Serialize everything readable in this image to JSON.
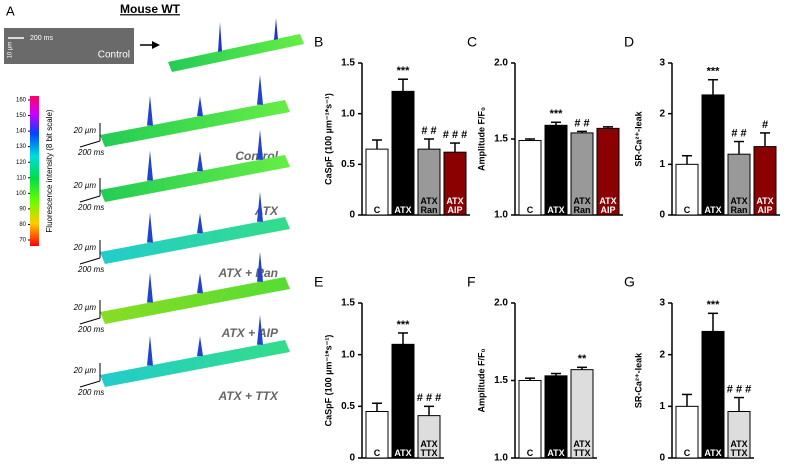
{
  "panel_a": {
    "panel": "A",
    "title": "Mouse WT",
    "control_image": {
      "label": "Control",
      "scale_time": "200 ms",
      "scale_space": "10 µm"
    },
    "colorbar": {
      "label": "Fluorescence intensity (8 bit scale)",
      "ticks": [
        70,
        80,
        90,
        100,
        110,
        120,
        130,
        140,
        150,
        160
      ]
    },
    "surfaces": [
      {
        "label": "Control",
        "scale_space": "20 µm",
        "scale_time": "200 ms"
      },
      {
        "label": "ATX",
        "scale_space": "20 µm",
        "scale_time": "200 ms"
      },
      {
        "label": "ATX + Ran",
        "scale_space": "20 µm",
        "scale_time": "200 ms"
      },
      {
        "label": "ATX + AIP",
        "scale_space": "20 µm",
        "scale_time": "200 ms"
      },
      {
        "label": "ATX + TTX",
        "scale_space": "20 µm",
        "scale_time": "200 ms"
      }
    ]
  },
  "chart_data": [
    {
      "type": "bar",
      "panel": "B",
      "ylabel": "CaSpF (100 µm⁻¹*s⁻¹)",
      "categories": [
        "C",
        "ATX",
        "ATX Ran",
        "ATX AIP"
      ],
      "values": [
        0.65,
        1.22,
        0.65,
        0.62
      ],
      "errors": [
        0.09,
        0.12,
        0.1,
        0.09
      ],
      "colors": [
        "#ffffff",
        "#000000",
        "#999999",
        "#8b0000"
      ],
      "annotations": [
        null,
        "***",
        "# #",
        "# # #"
      ],
      "ylim": [
        0,
        1.5
      ],
      "yticks": [
        0,
        0.5,
        {
          "value": 1,
          "label": "1.0"
        },
        1.5
      ]
    },
    {
      "type": "bar",
      "panel": "C",
      "ylabel": "Amplitude F/F₀",
      "categories": [
        "C",
        "ATX",
        "ATX Ran",
        "ATX AIP"
      ],
      "values": [
        1.49,
        1.59,
        1.54,
        1.57
      ],
      "errors": [
        0.01,
        0.02,
        0.01,
        0.01
      ],
      "colors": [
        "#ffffff",
        "#000000",
        "#999999",
        "#8b0000"
      ],
      "annotations": [
        null,
        "***",
        "# #",
        null
      ],
      "ylim": [
        1,
        2
      ],
      "yticks": [
        {
          "value": 1,
          "label": "1.0"
        },
        1.5,
        {
          "value": 2,
          "label": "2.0"
        }
      ]
    },
    {
      "type": "bar",
      "panel": "D",
      "ylabel": "SR-Ca²⁺-leak",
      "categories": [
        "C",
        "ATX",
        "ATX Ran",
        "ATX AIP"
      ],
      "values": [
        1.0,
        2.37,
        1.2,
        1.35
      ],
      "errors": [
        0.17,
        0.3,
        0.25,
        0.27
      ],
      "colors": [
        "#ffffff",
        "#000000",
        "#999999",
        "#8b0000"
      ],
      "annotations": [
        null,
        "***",
        "# #",
        "#"
      ],
      "ylim": [
        0,
        3
      ],
      "yticks": [
        0,
        1,
        2,
        3
      ]
    },
    {
      "type": "bar",
      "panel": "E",
      "ylabel": "CaSpF (100 µm⁻¹*s⁻¹)",
      "categories": [
        "C",
        "ATX",
        "ATX TTX"
      ],
      "values": [
        0.45,
        1.1,
        0.41
      ],
      "errors": [
        0.08,
        0.11,
        0.09
      ],
      "colors": [
        "#ffffff",
        "#000000",
        "#dddddd"
      ],
      "annotations": [
        null,
        "***",
        "# # #"
      ],
      "ylim": [
        0,
        1.5
      ],
      "yticks": [
        0,
        0.5,
        {
          "value": 1,
          "label": "1.0"
        },
        1.5
      ]
    },
    {
      "type": "bar",
      "panel": "F",
      "ylabel": "Amplitude F/F₀",
      "categories": [
        "C",
        "ATX",
        "ATX TTX"
      ],
      "values": [
        1.5,
        1.53,
        1.57
      ],
      "errors": [
        0.015,
        0.015,
        0.015
      ],
      "colors": [
        "#ffffff",
        "#000000",
        "#dddddd"
      ],
      "annotations": [
        null,
        null,
        "**"
      ],
      "ylim": [
        1,
        2
      ],
      "yticks": [
        {
          "value": 1,
          "label": "1.0"
        },
        1.5,
        {
          "value": 2,
          "label": "2.0"
        }
      ]
    },
    {
      "type": "bar",
      "panel": "G",
      "ylabel": "SR-Ca²⁺-leak",
      "categories": [
        "C",
        "ATX",
        "ATX TTX"
      ],
      "values": [
        1.0,
        2.45,
        0.9
      ],
      "errors": [
        0.23,
        0.35,
        0.27
      ],
      "colors": [
        "#ffffff",
        "#000000",
        "#dddddd"
      ],
      "annotations": [
        null,
        "***",
        "# # #"
      ],
      "ylim": [
        0,
        3
      ],
      "yticks": [
        0,
        1,
        2,
        3
      ]
    }
  ]
}
